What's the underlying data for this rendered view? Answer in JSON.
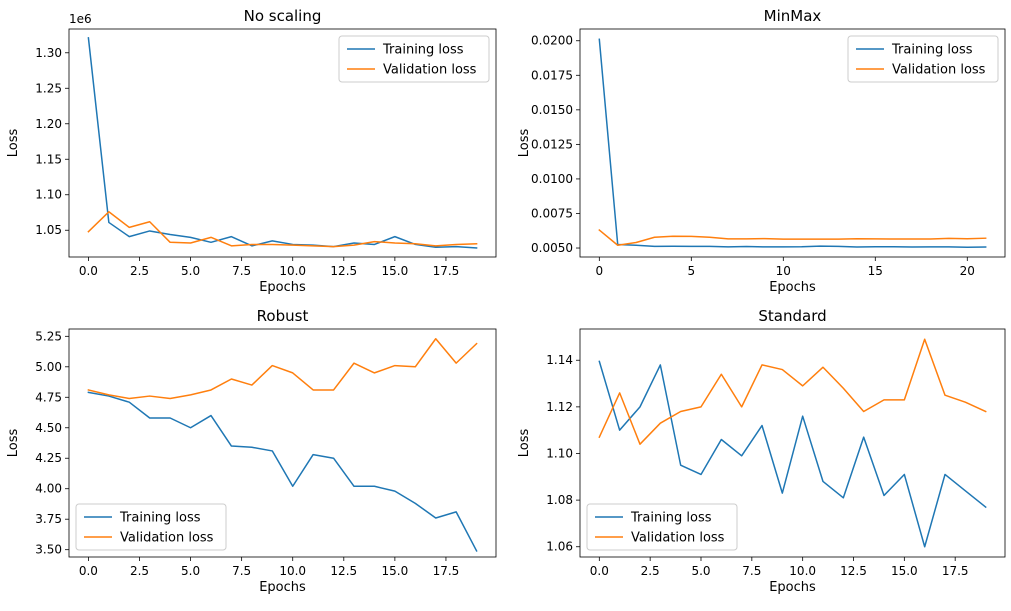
{
  "chart_data": [
    {
      "type": "line",
      "title": "No scaling",
      "xlabel": "Epochs",
      "ylabel": "Loss",
      "offset_text": "1e6",
      "xlim": [
        -0.95,
        19.95
      ],
      "ylim": [
        1.0123,
        1.3335
      ],
      "xticks": [
        0,
        2.5,
        5,
        7.5,
        10,
        12.5,
        15,
        17.5
      ],
      "xtick_labels": [
        "0.0",
        "2.5",
        "5.0",
        "7.5",
        "10.0",
        "12.5",
        "15.0",
        "17.5"
      ],
      "yticks": [
        1.05,
        1.1,
        1.15,
        1.2,
        1.25,
        1.3
      ],
      "ytick_labels": [
        "1.05",
        "1.10",
        "1.15",
        "1.20",
        "1.25",
        "1.30"
      ],
      "legend_position": "upper-right",
      "series": [
        {
          "name": "Training loss",
          "color": "#1f77b4",
          "x": [
            0,
            1,
            2,
            3,
            4,
            5,
            6,
            7,
            8,
            9,
            10,
            11,
            12,
            13,
            14,
            15,
            16,
            17,
            18,
            19
          ],
          "y": [
            1.321,
            1.061,
            1.041,
            1.049,
            1.044,
            1.04,
            1.033,
            1.041,
            1.028,
            1.035,
            1.03,
            1.029,
            1.027,
            1.032,
            1.03,
            1.041,
            1.03,
            1.026,
            1.027,
            1.025
          ]
        },
        {
          "name": "Validation loss",
          "color": "#ff7f0e",
          "x": [
            0,
            1,
            2,
            3,
            4,
            5,
            6,
            7,
            8,
            9,
            10,
            11,
            12,
            13,
            14,
            15,
            16,
            17,
            18,
            19
          ],
          "y": [
            1.048,
            1.076,
            1.054,
            1.062,
            1.033,
            1.032,
            1.04,
            1.028,
            1.03,
            1.03,
            1.029,
            1.028,
            1.027,
            1.029,
            1.034,
            1.032,
            1.031,
            1.028,
            1.03,
            1.031
          ]
        }
      ]
    },
    {
      "type": "line",
      "title": "MinMax",
      "xlabel": "Epochs",
      "ylabel": "Loss",
      "xlim": [
        -1.05,
        22.05
      ],
      "ylim": [
        0.00435,
        0.02085
      ],
      "xticks": [
        0,
        5,
        10,
        15,
        20
      ],
      "xtick_labels": [
        "0",
        "5",
        "10",
        "15",
        "20"
      ],
      "yticks": [
        0.005,
        0.0075,
        0.01,
        0.0125,
        0.015,
        0.0175,
        0.02
      ],
      "ytick_labels": [
        "0.0050",
        "0.0075",
        "0.0100",
        "0.0125",
        "0.0150",
        "0.0175",
        "0.0200"
      ],
      "legend_position": "upper-right",
      "series": [
        {
          "name": "Training loss",
          "color": "#1f77b4",
          "x": [
            0,
            1,
            2,
            3,
            4,
            5,
            6,
            7,
            8,
            9,
            10,
            11,
            12,
            13,
            14,
            15,
            16,
            17,
            18,
            19,
            20,
            21
          ],
          "y": [
            0.0201,
            0.00525,
            0.0052,
            0.00512,
            0.00513,
            0.00512,
            0.00512,
            0.00508,
            0.00511,
            0.00508,
            0.00508,
            0.00509,
            0.00514,
            0.00512,
            0.00507,
            0.00509,
            0.00509,
            0.00507,
            0.00508,
            0.00508,
            0.00506,
            0.00507
          ]
        },
        {
          "name": "Validation loss",
          "color": "#ff7f0e",
          "x": [
            0,
            1,
            2,
            3,
            4,
            5,
            6,
            7,
            8,
            9,
            10,
            11,
            12,
            13,
            14,
            15,
            16,
            17,
            18,
            19,
            20,
            21
          ],
          "y": [
            0.0063,
            0.0052,
            0.0054,
            0.00578,
            0.00585,
            0.00584,
            0.00578,
            0.00566,
            0.00566,
            0.00568,
            0.00564,
            0.00564,
            0.00564,
            0.00564,
            0.00567,
            0.00566,
            0.00565,
            0.00565,
            0.00565,
            0.0057,
            0.00567,
            0.00571
          ]
        }
      ]
    },
    {
      "type": "line",
      "title": "Robust",
      "xlabel": "Epochs",
      "ylabel": "Loss",
      "xlim": [
        -0.95,
        19.95
      ],
      "ylim": [
        3.44,
        5.31
      ],
      "xticks": [
        0,
        2.5,
        5,
        7.5,
        10,
        12.5,
        15,
        17.5
      ],
      "xtick_labels": [
        "0.0",
        "2.5",
        "5.0",
        "7.5",
        "10.0",
        "12.5",
        "15.0",
        "17.5"
      ],
      "yticks": [
        3.5,
        3.75,
        4.0,
        4.25,
        4.5,
        4.75,
        5.0,
        5.25
      ],
      "ytick_labels": [
        "3.50",
        "3.75",
        "4.00",
        "4.25",
        "4.50",
        "4.75",
        "5.00",
        "5.25"
      ],
      "legend_position": "lower-left",
      "series": [
        {
          "name": "Training loss",
          "color": "#1f77b4",
          "x": [
            0,
            1,
            2,
            3,
            4,
            5,
            6,
            7,
            8,
            9,
            10,
            11,
            12,
            13,
            14,
            15,
            16,
            17,
            18,
            19
          ],
          "y": [
            4.79,
            4.76,
            4.71,
            4.58,
            4.58,
            4.5,
            4.6,
            4.35,
            4.34,
            4.31,
            4.02,
            4.28,
            4.25,
            4.02,
            4.02,
            3.98,
            3.88,
            3.76,
            3.81,
            3.49
          ]
        },
        {
          "name": "Validation loss",
          "color": "#ff7f0e",
          "x": [
            0,
            1,
            2,
            3,
            4,
            5,
            6,
            7,
            8,
            9,
            10,
            11,
            12,
            13,
            14,
            15,
            16,
            17,
            18,
            19
          ],
          "y": [
            4.81,
            4.77,
            4.74,
            4.76,
            4.74,
            4.77,
            4.81,
            4.9,
            4.85,
            5.01,
            4.95,
            4.81,
            4.81,
            5.03,
            4.95,
            5.01,
            5.0,
            5.23,
            5.03,
            5.19
          ]
        }
      ]
    },
    {
      "type": "line",
      "title": "Standard",
      "xlabel": "Epochs",
      "ylabel": "Loss",
      "xlim": [
        -0.95,
        19.95
      ],
      "ylim": [
        1.0556,
        1.1534
      ],
      "xticks": [
        0,
        2.5,
        5,
        7.5,
        10,
        12.5,
        15,
        17.5
      ],
      "xtick_labels": [
        "0.0",
        "2.5",
        "5.0",
        "7.5",
        "10.0",
        "12.5",
        "15.0",
        "17.5"
      ],
      "yticks": [
        1.06,
        1.08,
        1.1,
        1.12,
        1.14
      ],
      "ytick_labels": [
        "1.06",
        "1.08",
        "1.10",
        "1.12",
        "1.14"
      ],
      "legend_position": "lower-left",
      "series": [
        {
          "name": "Training loss",
          "color": "#1f77b4",
          "x": [
            0,
            1,
            2,
            3,
            4,
            5,
            6,
            7,
            8,
            9,
            10,
            11,
            12,
            13,
            14,
            15,
            16,
            17,
            18,
            19
          ],
          "y": [
            1.1395,
            1.11,
            1.12,
            1.138,
            1.095,
            1.091,
            1.106,
            1.099,
            1.112,
            1.083,
            1.116,
            1.088,
            1.081,
            1.107,
            1.082,
            1.091,
            1.06,
            1.091,
            1.084,
            1.077
          ]
        },
        {
          "name": "Validation loss",
          "color": "#ff7f0e",
          "x": [
            0,
            1,
            2,
            3,
            4,
            5,
            6,
            7,
            8,
            9,
            10,
            11,
            12,
            13,
            14,
            15,
            16,
            17,
            18,
            19
          ],
          "y": [
            1.107,
            1.126,
            1.104,
            1.113,
            1.118,
            1.12,
            1.134,
            1.12,
            1.138,
            1.136,
            1.129,
            1.137,
            1.128,
            1.118,
            1.123,
            1.123,
            1.149,
            1.125,
            1.122,
            1.118
          ]
        }
      ]
    }
  ]
}
